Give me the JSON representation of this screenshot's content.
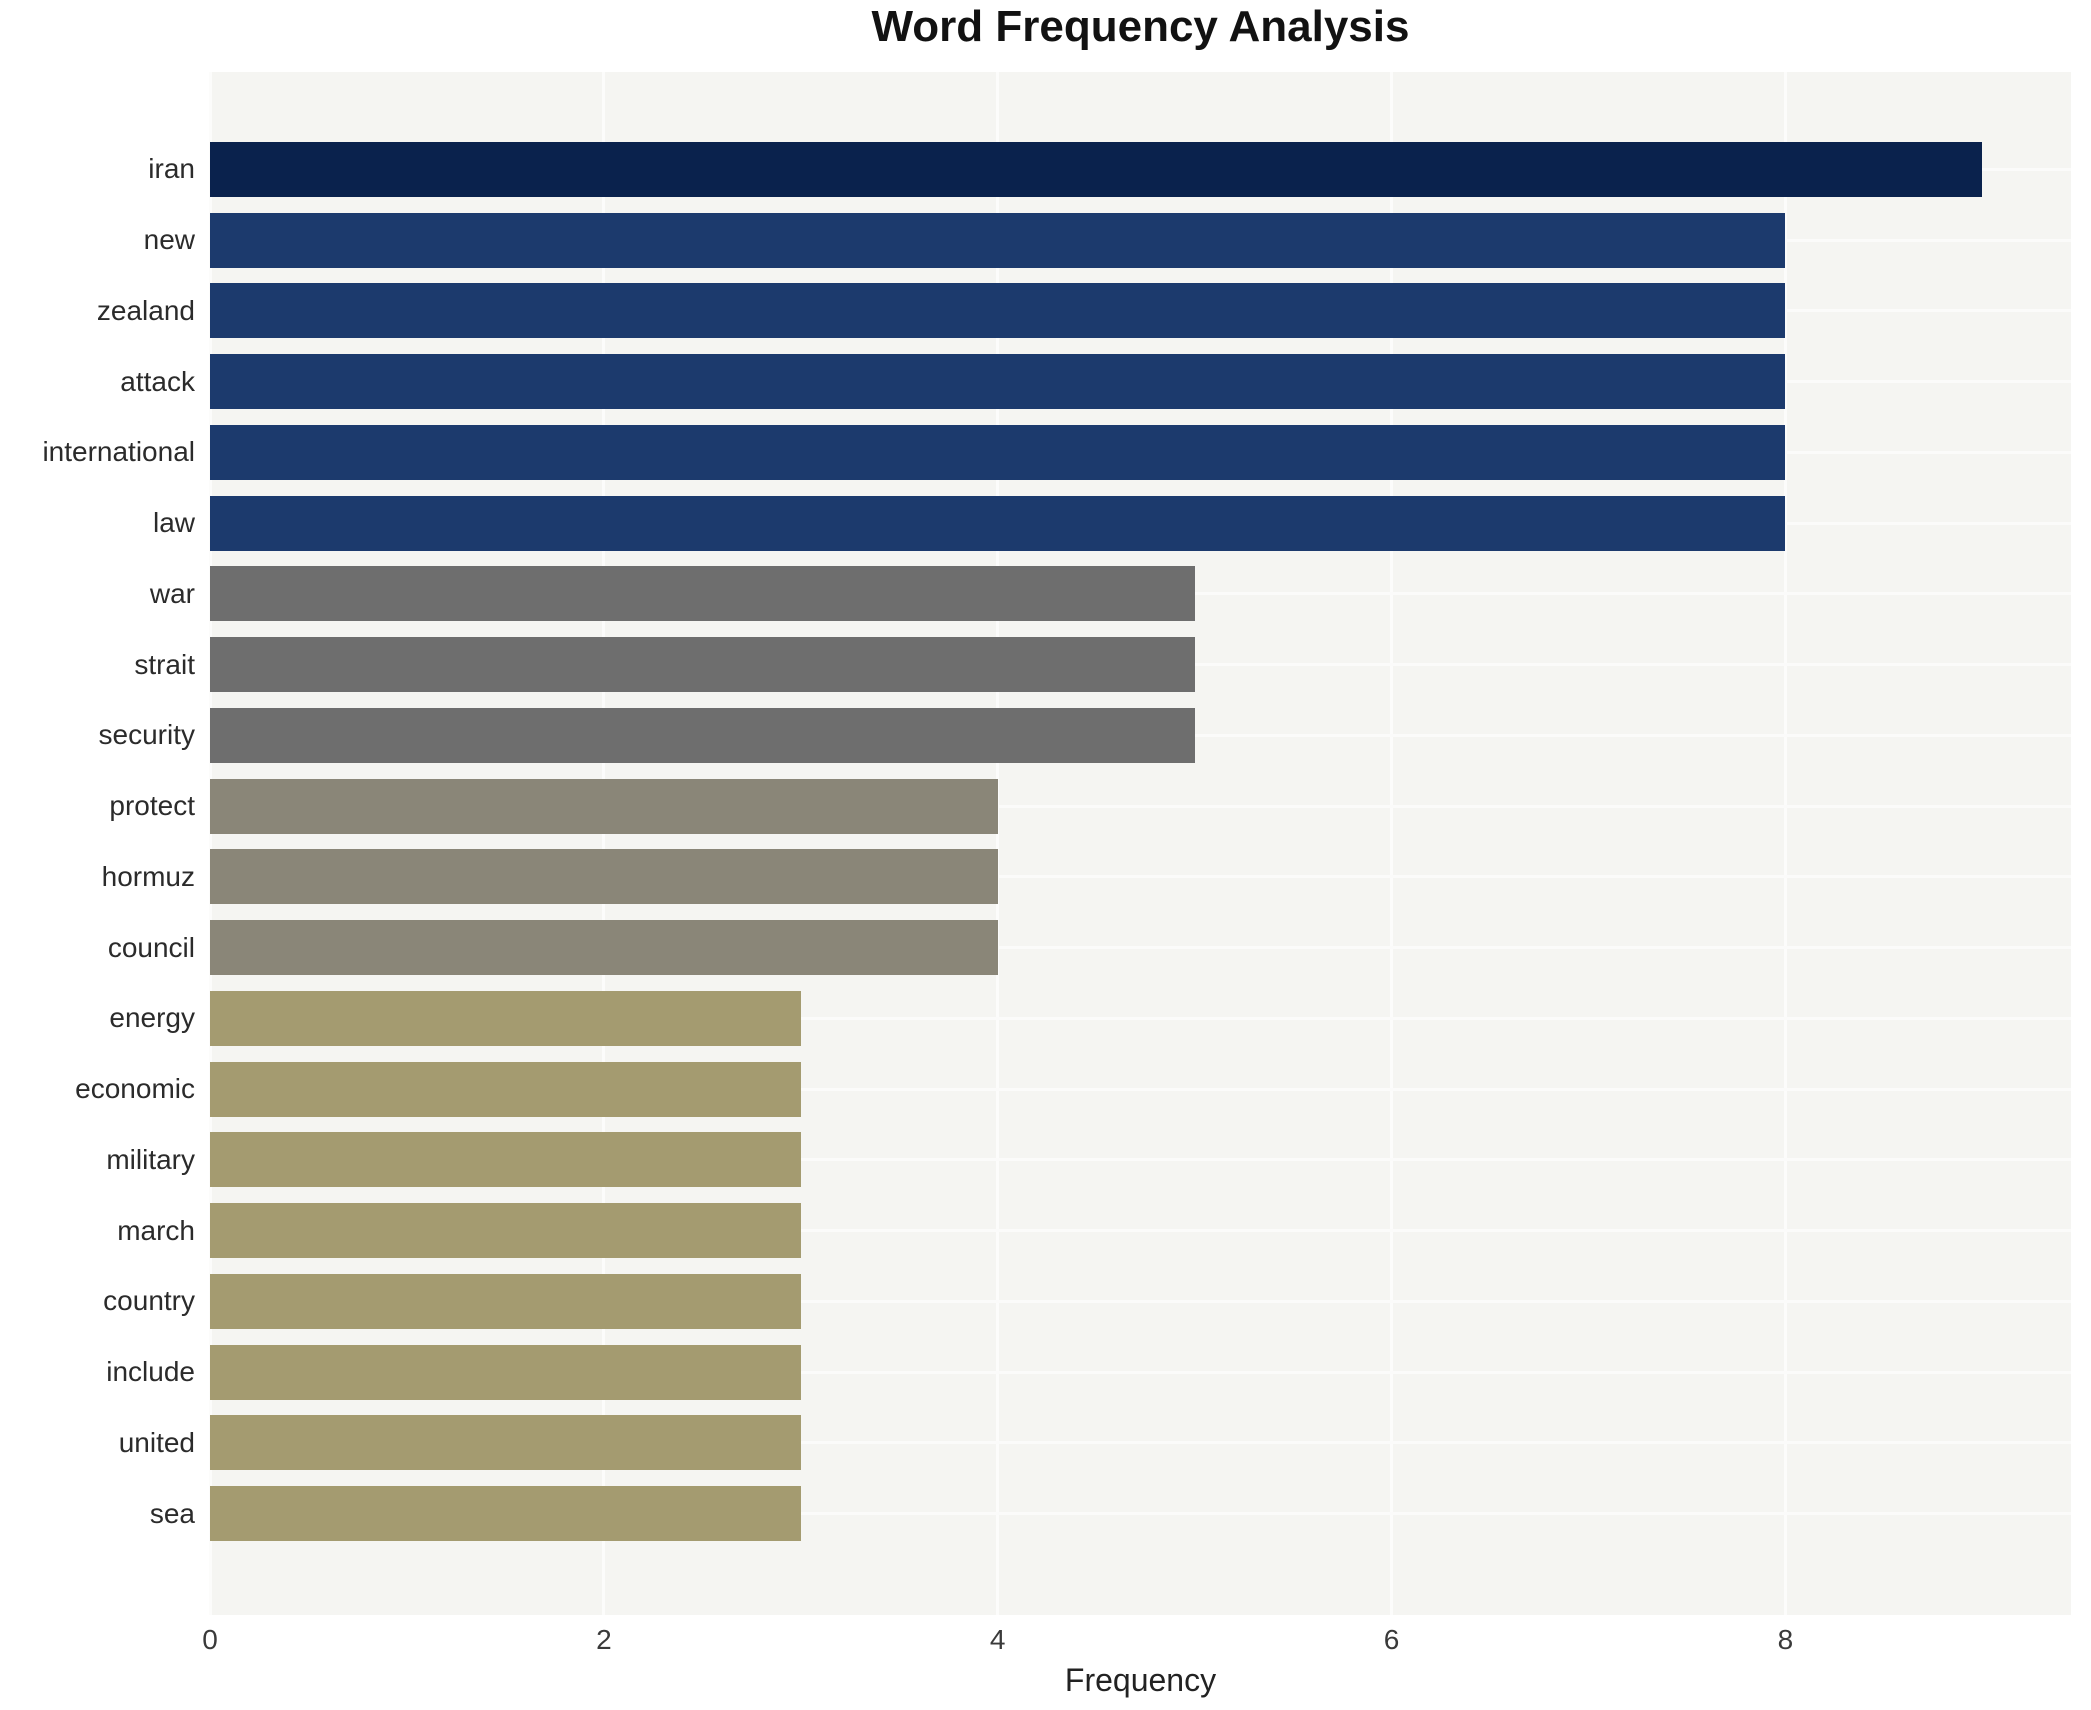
{
  "title": "Word Frequency Analysis",
  "chart_data": {
    "type": "bar",
    "orientation": "horizontal",
    "title": "Word Frequency Analysis",
    "xlabel": "Frequency",
    "ylabel": "",
    "categories": [
      "iran",
      "new",
      "zealand",
      "attack",
      "international",
      "law",
      "war",
      "strait",
      "security",
      "protect",
      "hormuz",
      "council",
      "energy",
      "economic",
      "military",
      "march",
      "country",
      "include",
      "united",
      "sea"
    ],
    "values": [
      9,
      8,
      8,
      8,
      8,
      8,
      5,
      5,
      5,
      4,
      4,
      4,
      3,
      3,
      3,
      3,
      3,
      3,
      3,
      3
    ],
    "bar_colors": [
      "#0a224d",
      "#1c3a6d",
      "#1c3a6d",
      "#1c3a6d",
      "#1c3a6d",
      "#1c3a6d",
      "#6e6e6e",
      "#6e6e6e",
      "#6e6e6e",
      "#8a8678",
      "#8a8678",
      "#8a8678",
      "#a49b70",
      "#a49b70",
      "#a49b70",
      "#a49b70",
      "#a49b70",
      "#a49b70",
      "#a49b70",
      "#a49b70"
    ],
    "xlim": [
      0,
      9.45
    ],
    "xticks": [
      0,
      2,
      4,
      6,
      8
    ],
    "grid": true,
    "grid_color": "#fcfcfb",
    "plot_background": "#f5f5f2",
    "legend": false
  }
}
